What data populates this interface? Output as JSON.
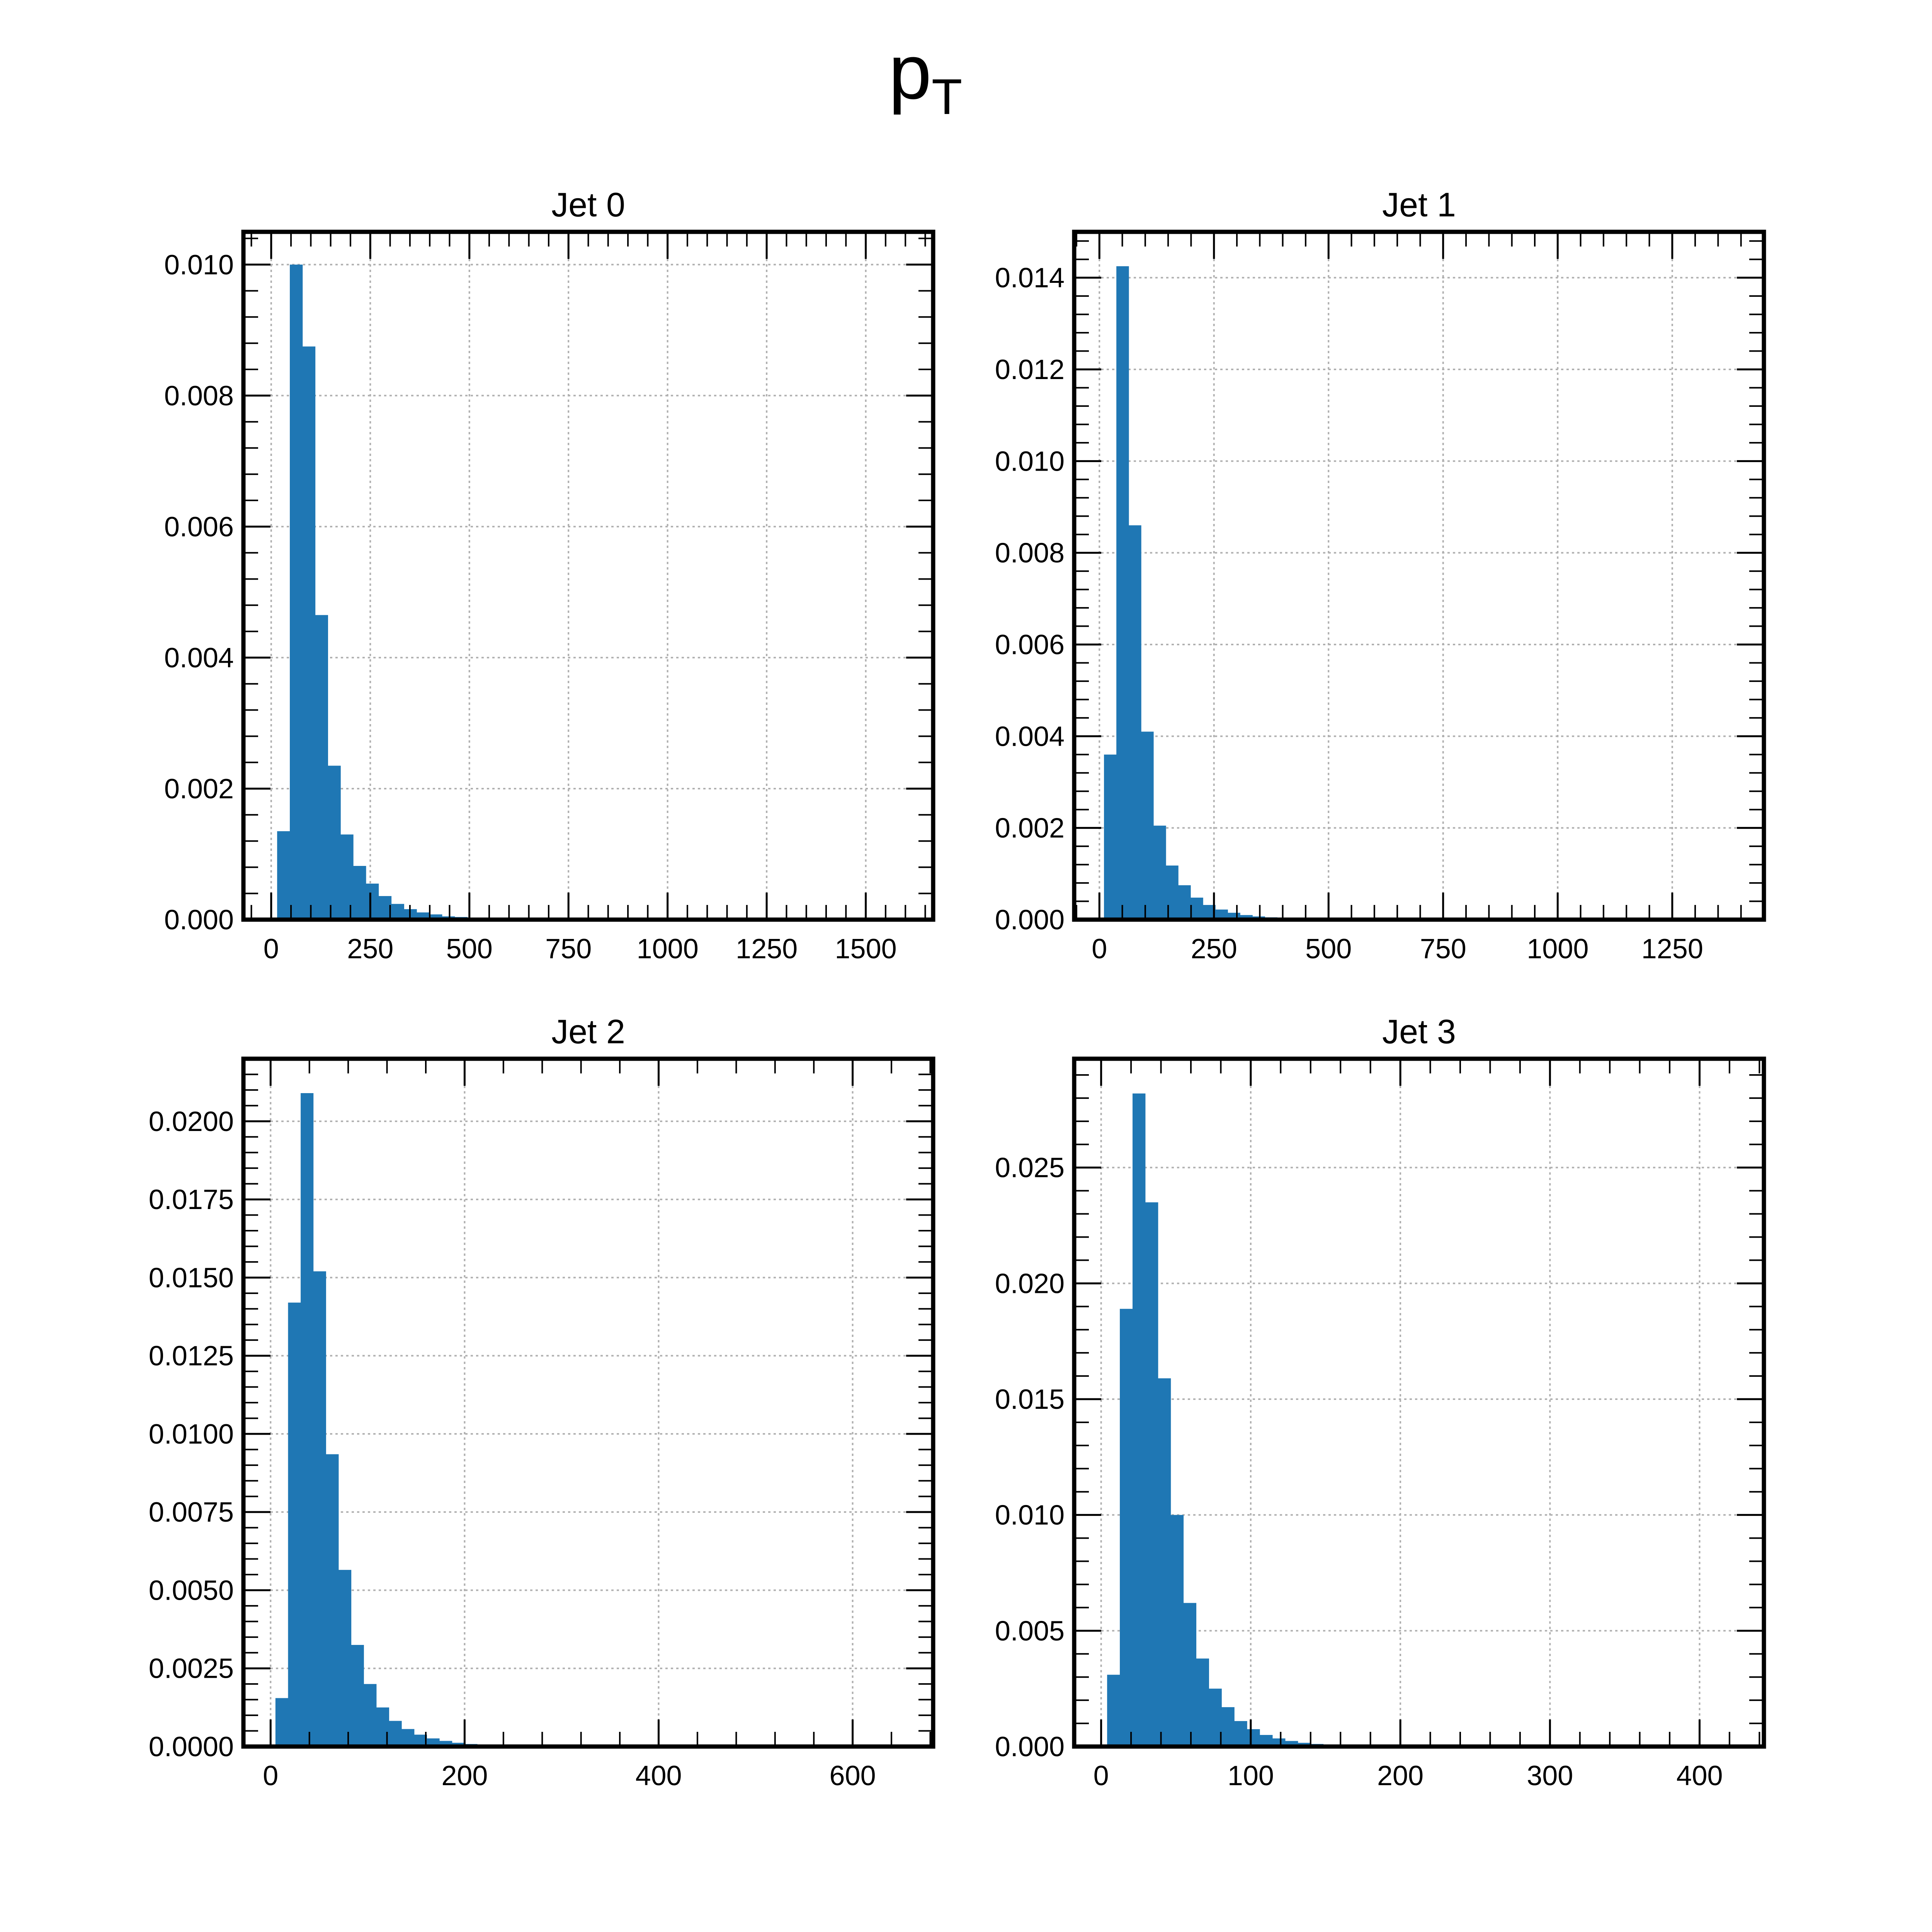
{
  "figure": {
    "title_main": "p",
    "title_sub": "T",
    "bar_color": "#1f77b4"
  },
  "chart_data": [
    {
      "type": "bar",
      "title": "Jet 0",
      "xlim": [
        -70,
        1670
      ],
      "ylim": [
        0,
        0.0105
      ],
      "xticks": [
        0,
        250,
        500,
        750,
        1000,
        1250,
        1500
      ],
      "xtick_labels": [
        "0",
        "250",
        "500",
        "750",
        "1000",
        "1250",
        "1500"
      ],
      "yticks": [
        0,
        0.002,
        0.004,
        0.006,
        0.008,
        0.01
      ],
      "ytick_labels": [
        "0.000",
        "0.002",
        "0.004",
        "0.006",
        "0.008",
        "0.010"
      ],
      "bin_start": 15,
      "bin_width": 32,
      "values": [
        0.00135,
        0.01,
        0.00875,
        0.00465,
        0.00235,
        0.0013,
        0.00082,
        0.00055,
        0.00036,
        0.00024,
        0.00016,
        0.00011,
        8e-05,
        5e-05,
        4e-05,
        3e-05,
        2e-05,
        1.5e-05,
        1e-05,
        1e-05
      ]
    },
    {
      "type": "bar",
      "title": "Jet 1",
      "xlim": [
        -55,
        1450
      ],
      "ylim": [
        0,
        0.015
      ],
      "xticks": [
        0,
        250,
        500,
        750,
        1000,
        1250
      ],
      "xtick_labels": [
        "0",
        "250",
        "500",
        "750",
        "1000",
        "1250"
      ],
      "yticks": [
        0,
        0.002,
        0.004,
        0.006,
        0.008,
        0.01,
        0.012,
        0.014
      ],
      "ytick_labels": [
        "0.000",
        "0.002",
        "0.004",
        "0.006",
        "0.008",
        "0.010",
        "0.012",
        "0.014"
      ],
      "bin_start": 10,
      "bin_width": 27,
      "values": [
        0.0036,
        0.01425,
        0.0086,
        0.0041,
        0.00205,
        0.00118,
        0.00075,
        0.00048,
        0.00032,
        0.00022,
        0.00015,
        0.0001,
        7e-05,
        5e-05,
        3e-05,
        2e-05,
        1.5e-05,
        1e-05
      ]
    },
    {
      "type": "bar",
      "title": "Jet 2",
      "xlim": [
        -28,
        683
      ],
      "ylim": [
        0,
        0.022
      ],
      "xticks": [
        0,
        200,
        400,
        600
      ],
      "xtick_labels": [
        "0",
        "200",
        "400",
        "600"
      ],
      "yticks": [
        0,
        0.0025,
        0.005,
        0.0075,
        0.01,
        0.0125,
        0.015,
        0.0175,
        0.02
      ],
      "ytick_labels": [
        "0.0000",
        "0.0025",
        "0.0050",
        "0.0075",
        "0.0100",
        "0.0125",
        "0.0150",
        "0.0175",
        "0.0200"
      ],
      "bin_start": 5,
      "bin_width": 13,
      "values": [
        0.00155,
        0.0142,
        0.0209,
        0.0152,
        0.00935,
        0.00565,
        0.00325,
        0.002,
        0.00125,
        0.00082,
        0.00056,
        0.00038,
        0.00026,
        0.00018,
        0.00012,
        8e-05,
        5e-05,
        3e-05,
        2e-05,
        1e-05
      ]
    },
    {
      "type": "bar",
      "title": "Jet 3",
      "xlim": [
        -18,
        443
      ],
      "ylim": [
        0,
        0.0297
      ],
      "xticks": [
        0,
        100,
        200,
        300,
        400
      ],
      "xtick_labels": [
        "0",
        "100",
        "200",
        "300",
        "400"
      ],
      "yticks": [
        0,
        0.005,
        0.01,
        0.015,
        0.02,
        0.025
      ],
      "ytick_labels": [
        "0.000",
        "0.005",
        "0.010",
        "0.015",
        "0.020",
        "0.025"
      ],
      "bin_start": 4,
      "bin_width": 8.5,
      "values": [
        0.0031,
        0.0189,
        0.0282,
        0.0235,
        0.0159,
        0.01,
        0.0062,
        0.0038,
        0.0025,
        0.0017,
        0.0011,
        0.00075,
        0.0005,
        0.00035,
        0.00024,
        0.00016,
        0.00011,
        8e-05,
        5e-05,
        3e-05
      ]
    }
  ]
}
